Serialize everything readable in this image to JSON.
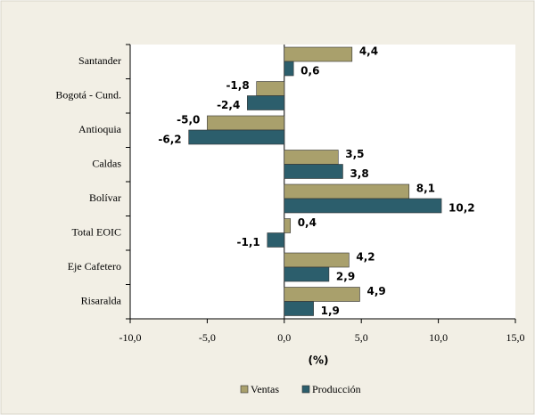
{
  "chart_data": {
    "type": "hbar",
    "categories": [
      "Santander",
      "Bogotá - Cund.",
      "Antioquia",
      "Caldas",
      "Bolívar",
      "Total EOIC",
      "Eje Cafetero",
      "Risaralda"
    ],
    "series": [
      {
        "name": "Ventas",
        "color": "#a9a06c",
        "values": [
          4.4,
          -1.8,
          -5.0,
          3.5,
          8.1,
          0.4,
          4.2,
          4.9
        ],
        "value_labels": [
          "4,4",
          "-1,8",
          "-5,0",
          "3,5",
          "8,1",
          "0,4",
          "4,2",
          "4,9"
        ]
      },
      {
        "name": "Producción",
        "color": "#2c5e6c",
        "values": [
          0.6,
          -2.4,
          -6.2,
          3.8,
          10.2,
          -1.1,
          2.9,
          1.9
        ],
        "value_labels": [
          "0,6",
          "-2,4",
          "-6,2",
          "3,8",
          "10,2",
          "-1,1",
          "2,9",
          "1,9"
        ]
      }
    ],
    "xlabel": "(%)",
    "xlim": [
      -10,
      15
    ],
    "xticks": [
      {
        "value": -10,
        "label": "-10,0"
      },
      {
        "value": -5,
        "label": "-5,0"
      },
      {
        "value": 0,
        "label": "0,0"
      },
      {
        "value": 5,
        "label": "5,0"
      },
      {
        "value": 10,
        "label": "10,0"
      },
      {
        "value": 15,
        "label": "15,0"
      }
    ],
    "legend": "bottom"
  }
}
